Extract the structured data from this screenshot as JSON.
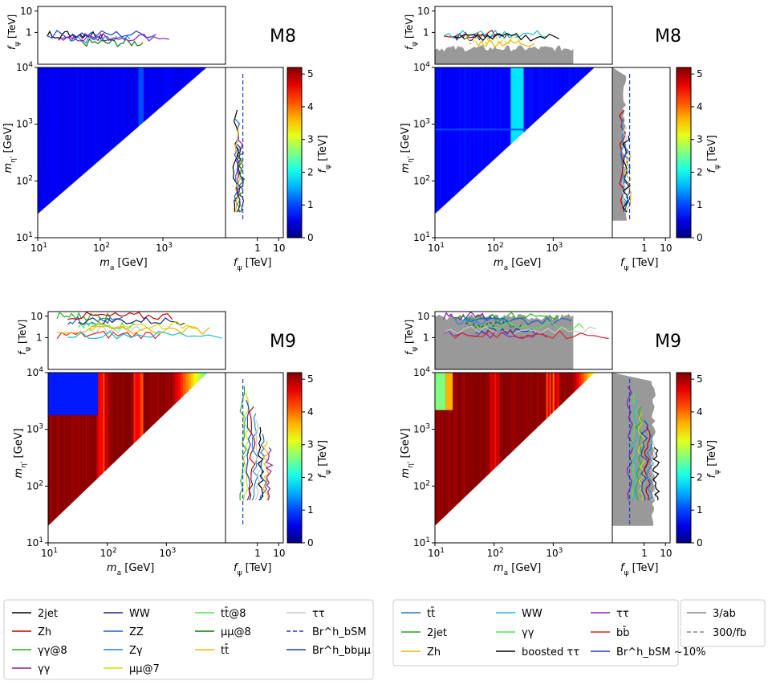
{
  "chart_data": {
    "type": "heatmap",
    "colorbar": {
      "label": "f_ψ [TeV]",
      "ticks": [
        "0",
        "1",
        "2",
        "3",
        "4",
        "5"
      ],
      "range": [
        0,
        5.2
      ],
      "colormap": "jet"
    },
    "axes": {
      "ma_label": "m_a [GeV]",
      "meta_label": "m_η' [GeV]",
      "fpsi_label": "f_ψ [TeV]",
      "log_ticks_ma": [
        "10^1",
        "10^2",
        "10^3"
      ],
      "log_ticks_meta": [
        "10^1",
        "10^2",
        "10^3",
        "10^4"
      ],
      "top_ticks": [
        "1",
        "10"
      ],
      "side_ticks": [
        "1",
        "10"
      ]
    },
    "panels": [
      {
        "id": "M8-left",
        "label": "M8",
        "background": "low",
        "comment": "M8 current bounds; f_psi mostly below 1 TeV"
      },
      {
        "id": "M8-right",
        "label": "M8",
        "background": "low-projection",
        "comment": "M8 future projections; cyan band near m_a 200-300 GeV"
      },
      {
        "id": "M9-left",
        "label": "M9",
        "background": "high",
        "comment": "M9 current bounds; f_psi up to ~5 TeV"
      },
      {
        "id": "M9-right",
        "label": "M9",
        "background": "high-projection",
        "comment": "M9 future projections"
      }
    ],
    "legend_left": {
      "columns": [
        [
          {
            "label": "2jet",
            "color": "#000000",
            "style": "solid"
          },
          {
            "label": "Zh",
            "color": "#c00000",
            "style": "solid"
          },
          {
            "label": "γγ@8",
            "color": "#22b022",
            "style": "solid"
          },
          {
            "label": "γγ",
            "color": "#7b1fa2",
            "style": "solid"
          }
        ],
        [
          {
            "label": "WW",
            "color": "#1a237e",
            "style": "solid"
          },
          {
            "label": "ZZ",
            "color": "#1565c0",
            "style": "solid"
          },
          {
            "label": "Zγ",
            "color": "#1e88e5",
            "style": "solid"
          },
          {
            "label": "μμ@7",
            "color": "#c6e000",
            "style": "solid"
          }
        ],
        [
          {
            "label": "tt̄@8",
            "color": "#55e055",
            "style": "solid"
          },
          {
            "label": "μμ@8",
            "color": "#0a7a0a",
            "style": "solid"
          },
          {
            "label": "tt̄",
            "color": "#f5b400",
            "style": "solid"
          }
        ],
        [
          {
            "label": "ττ",
            "color": "#c8c8c8",
            "style": "solid"
          },
          {
            "label": "Br^h_bSM",
            "color": "#1a3fd0",
            "style": "dashed"
          },
          {
            "label": "Br^h_bbμμ",
            "color": "#1a3fd0",
            "style": "solid"
          }
        ]
      ]
    },
    "legend_right": {
      "columns": [
        [
          {
            "label": "tt̄",
            "color": "#1f77b4",
            "style": "solid"
          },
          {
            "label": "2jet",
            "color": "#2ca02c",
            "style": "solid"
          },
          {
            "label": "Zh",
            "color": "#f5b400",
            "style": "solid"
          }
        ],
        [
          {
            "label": "WW",
            "color": "#17becf",
            "style": "solid"
          },
          {
            "label": "γγ",
            "color": "#55e055",
            "style": "solid"
          },
          {
            "label": "boosted ττ",
            "color": "#000000",
            "style": "solid"
          }
        ],
        [
          {
            "label": "ττ",
            "color": "#8e24aa",
            "style": "solid"
          },
          {
            "label": "bb̄",
            "color": "#d62728",
            "style": "solid"
          },
          {
            "label": "Br^h_bSM ~10%",
            "color": "#1a3fd0",
            "style": "solid"
          }
        ]
      ],
      "projection": [
        {
          "label": "3/ab",
          "color": "#888888",
          "style": "solid"
        },
        {
          "label": "300/fb",
          "color": "#888888",
          "style": "dashed"
        }
      ]
    }
  }
}
